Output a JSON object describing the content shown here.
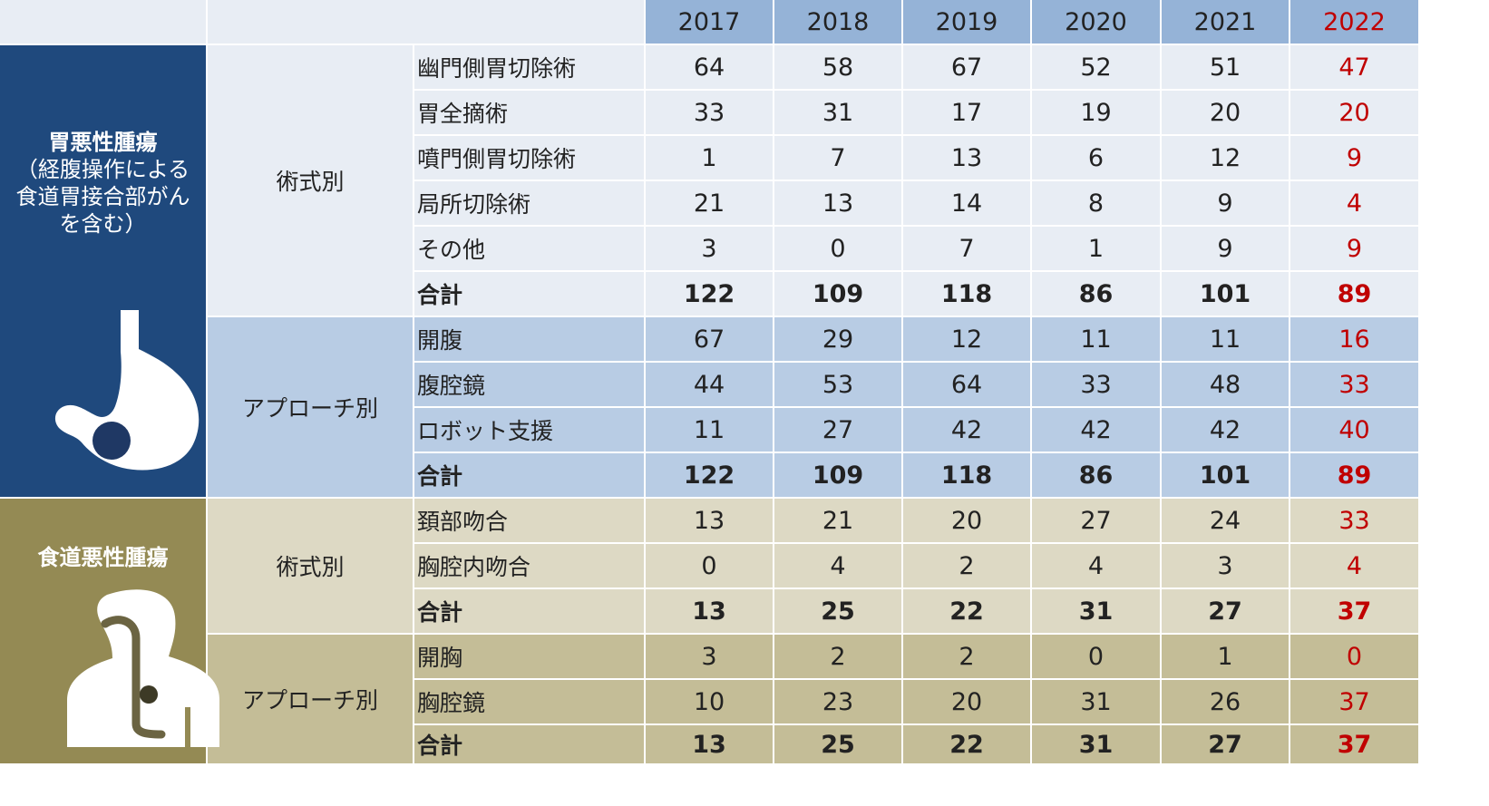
{
  "chart_data": {
    "type": "table",
    "years": [
      "2017",
      "2018",
      "2019",
      "2020",
      "2021",
      "2022"
    ],
    "highlight_year_color": "#c00000",
    "sections": [
      {
        "title": "胃悪性腫瘍",
        "subtitle": "（経腹操作による食道胃接合部がんを含む）",
        "color": "#1f497d",
        "icon": "stomach-icon",
        "groups": [
          {
            "name": "術式別",
            "color": "#e8edf4",
            "rows": [
              {
                "label": "幽門側胃切除術",
                "values": [
                  "64",
                  "58",
                  "67",
                  "52",
                  "51",
                  "47"
                ]
              },
              {
                "label": "胃全摘術",
                "values": [
                  "33",
                  "31",
                  "17",
                  "19",
                  "20",
                  "20"
                ]
              },
              {
                "label": "噴門側胃切除術",
                "values": [
                  "1",
                  "7",
                  "13",
                  "6",
                  "12",
                  "9"
                ]
              },
              {
                "label": "局所切除術",
                "values": [
                  "21",
                  "13",
                  "14",
                  "8",
                  "9",
                  "4"
                ]
              },
              {
                "label": "その他",
                "values": [
                  "3",
                  "0",
                  "7",
                  "1",
                  "9",
                  "9"
                ]
              },
              {
                "label": "合計",
                "values": [
                  "122",
                  "109",
                  "118",
                  "86",
                  "101",
                  "89"
                ],
                "total": true
              }
            ]
          },
          {
            "name": "アプローチ別",
            "color": "#b8cce4",
            "rows": [
              {
                "label": "開腹",
                "values": [
                  "67",
                  "29",
                  "12",
                  "11",
                  "11",
                  "16"
                ]
              },
              {
                "label": "腹腔鏡",
                "values": [
                  "44",
                  "53",
                  "64",
                  "33",
                  "48",
                  "33"
                ]
              },
              {
                "label": "ロボット支援",
                "values": [
                  "11",
                  "27",
                  "42",
                  "42",
                  "42",
                  "40"
                ]
              },
              {
                "label": "合計",
                "values": [
                  "122",
                  "109",
                  "118",
                  "86",
                  "101",
                  "89"
                ],
                "total": true
              }
            ]
          }
        ]
      },
      {
        "title": "食道悪性腫瘍",
        "subtitle": "",
        "color": "#948a54",
        "icon": "esophagus-icon",
        "groups": [
          {
            "name": "術式別",
            "color": "#ddd9c4",
            "rows": [
              {
                "label": "頚部吻合",
                "values": [
                  "13",
                  "21",
                  "20",
                  "27",
                  "24",
                  "33"
                ]
              },
              {
                "label": "胸腔内吻合",
                "values": [
                  "0",
                  "4",
                  "2",
                  "4",
                  "3",
                  "4"
                ]
              },
              {
                "label": "合計",
                "values": [
                  "13",
                  "25",
                  "22",
                  "31",
                  "27",
                  "37"
                ],
                "total": true
              }
            ]
          },
          {
            "name": "アプローチ別",
            "color": "#c4bd97",
            "rows": [
              {
                "label": "開胸",
                "values": [
                  "3",
                  "2",
                  "2",
                  "0",
                  "1",
                  "0"
                ]
              },
              {
                "label": "胸腔鏡",
                "values": [
                  "10",
                  "23",
                  "20",
                  "31",
                  "26",
                  "37"
                ]
              },
              {
                "label": "合計",
                "values": [
                  "13",
                  "25",
                  "22",
                  "31",
                  "27",
                  "37"
                ],
                "total": true
              }
            ]
          }
        ]
      }
    ]
  }
}
